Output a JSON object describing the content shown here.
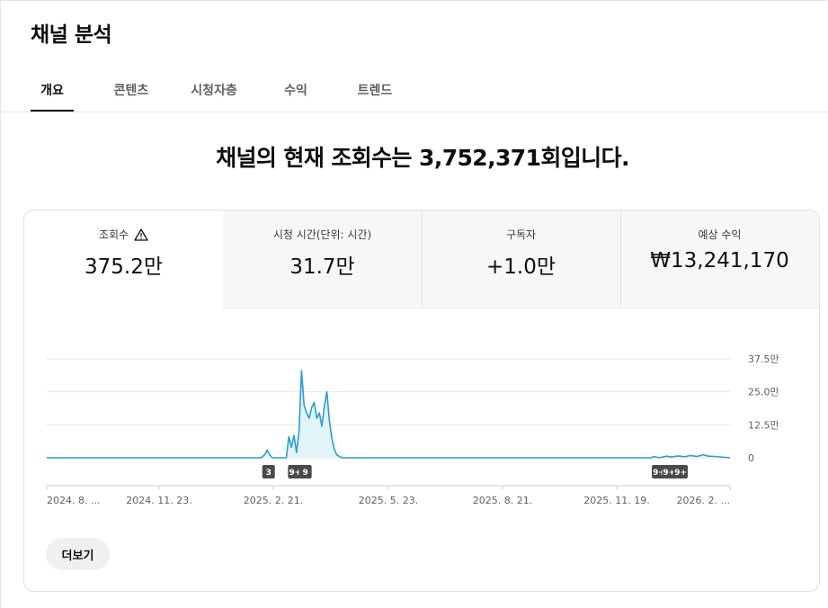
{
  "page": {
    "title": "채널 분석"
  },
  "tabs": [
    {
      "label": "개요",
      "active": true
    },
    {
      "label": "콘텐츠"
    },
    {
      "label": "시청자층"
    },
    {
      "label": "수익"
    },
    {
      "label": "트렌드"
    }
  ],
  "headline": "채널의 현재 조회수는 3,752,371회입니다.",
  "metrics": [
    {
      "label": "조회수",
      "value": "375.2만",
      "icon": "warning-triangle-icon",
      "active": true
    },
    {
      "label": "시청 시간(단위: 시간)",
      "value": "31.7만"
    },
    {
      "label": "구독자",
      "value": "+1.0만"
    },
    {
      "label": "예상 수익",
      "value": "₩13,241,170"
    }
  ],
  "more_button": "더보기",
  "colors": {
    "line": "#2c9ed1",
    "fill": "#e3f3fa",
    "accent": "#0f0f0f"
  },
  "chart_data": {
    "type": "line",
    "metric": "조회수",
    "y_ticks": [
      "37.5만",
      "25.0만",
      "12.5만",
      "0"
    ],
    "ylim": [
      0,
      375000
    ],
    "x_ticks": [
      "2024. 8. ...",
      "2024. 11. 23.",
      "2025. 2. 21.",
      "2025. 5. 23.",
      "2025. 8. 21.",
      "2025. 11. 19.",
      "2026. 2. ..."
    ],
    "x_range": [
      "2024-08-24",
      "2026-02-14"
    ],
    "series": [
      {
        "points": [
          [
            "2024-08-24",
            0
          ],
          [
            "2025-02-09",
            0
          ],
          [
            "2025-02-12",
            12000
          ],
          [
            "2025-02-14",
            30000
          ],
          [
            "2025-02-16",
            10000
          ],
          [
            "2025-02-18",
            0
          ],
          [
            "2025-03-01",
            0
          ],
          [
            "2025-03-03",
            80000
          ],
          [
            "2025-03-05",
            40000
          ],
          [
            "2025-03-07",
            85000
          ],
          [
            "2025-03-09",
            20000
          ],
          [
            "2025-03-11",
            100000
          ],
          [
            "2025-03-13",
            330000
          ],
          [
            "2025-03-15",
            200000
          ],
          [
            "2025-03-17",
            170000
          ],
          [
            "2025-03-19",
            150000
          ],
          [
            "2025-03-21",
            190000
          ],
          [
            "2025-03-23",
            210000
          ],
          [
            "2025-03-25",
            150000
          ],
          [
            "2025-03-27",
            170000
          ],
          [
            "2025-03-29",
            120000
          ],
          [
            "2025-03-31",
            195000
          ],
          [
            "2025-04-02",
            250000
          ],
          [
            "2025-04-04",
            140000
          ],
          [
            "2025-04-06",
            70000
          ],
          [
            "2025-04-08",
            30000
          ],
          [
            "2025-04-10",
            10000
          ],
          [
            "2025-04-14",
            0
          ],
          [
            "2025-12-14",
            0
          ],
          [
            "2025-12-16",
            5000
          ],
          [
            "2025-12-20",
            0
          ],
          [
            "2025-12-26",
            6000
          ],
          [
            "2025-12-30",
            3000
          ],
          [
            "2026-01-04",
            7000
          ],
          [
            "2026-01-09",
            4000
          ],
          [
            "2026-01-14",
            9000
          ],
          [
            "2026-01-19",
            5000
          ],
          [
            "2026-01-24",
            12000
          ],
          [
            "2026-01-28",
            6000
          ],
          [
            "2026-02-02",
            5000
          ],
          [
            "2026-02-14",
            0
          ]
        ]
      }
    ],
    "event_markers": [
      {
        "date": "2025-02-15",
        "label": "3"
      },
      {
        "date": "2025-03-08",
        "label": "9+"
      },
      {
        "date": "2025-03-16",
        "label": "9"
      },
      {
        "date": "2025-12-20",
        "label": "9+"
      },
      {
        "date": "2025-12-28",
        "label": "9+"
      },
      {
        "date": "2026-01-06",
        "label": "9+"
      }
    ]
  }
}
